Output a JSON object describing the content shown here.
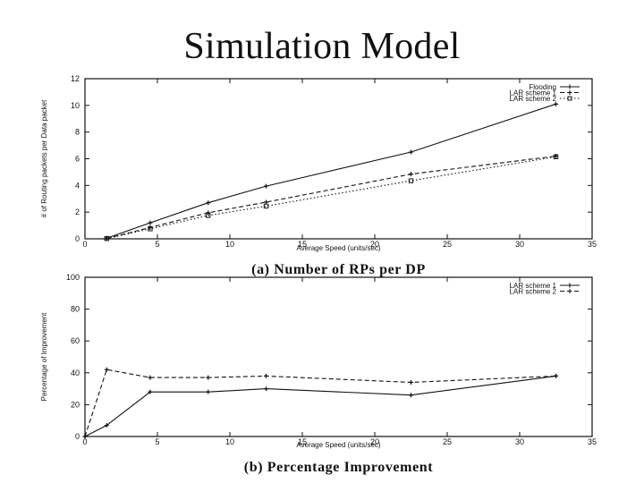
{
  "slide": {
    "title": "Simulation Model"
  },
  "chart_data": [
    {
      "type": "line",
      "caption": "(a) Number of RPs per DP",
      "xlabel": "Average Speed (units/sec)",
      "ylabel": "# of Routing packets per Data packet",
      "xlim": [
        0,
        35
      ],
      "ylim": [
        0,
        12
      ],
      "xticks": [
        0,
        5,
        10,
        15,
        20,
        25,
        30,
        35
      ],
      "yticks": [
        0,
        2,
        4,
        6,
        8,
        10,
        12
      ],
      "legend_position": "top-right",
      "series": [
        {
          "name": "Flooding",
          "style": "solid",
          "marker": "plus",
          "x": [
            1.5,
            4.5,
            8.5,
            12.5,
            22.5,
            32.5
          ],
          "y": [
            0.05,
            1.2,
            2.7,
            3.95,
            6.5,
            10.1
          ]
        },
        {
          "name": "LAR scheme 1",
          "style": "dash",
          "marker": "plus",
          "x": [
            1.5,
            4.5,
            8.5,
            12.5,
            22.5,
            32.5
          ],
          "y": [
            0.03,
            0.85,
            1.95,
            2.75,
            4.85,
            6.2
          ]
        },
        {
          "name": "LAR scheme 2",
          "style": "dot",
          "marker": "square",
          "x": [
            1.5,
            4.5,
            8.5,
            12.5,
            22.5,
            32.5
          ],
          "y": [
            0.02,
            0.75,
            1.75,
            2.45,
            4.35,
            6.15
          ]
        }
      ]
    },
    {
      "type": "line",
      "caption": "(b) Percentage Improvement",
      "xlabel": "Average Speed (units/sec)",
      "ylabel": "Percentage of Improvement",
      "xlim": [
        0,
        35
      ],
      "ylim": [
        0,
        100
      ],
      "xticks": [
        0,
        5,
        10,
        15,
        20,
        25,
        30,
        35
      ],
      "yticks": [
        0,
        20,
        40,
        60,
        80,
        100
      ],
      "legend_position": "top-right",
      "series": [
        {
          "name": "LAR scheme 1",
          "style": "solid",
          "marker": "plus",
          "x": [
            0,
            1.5,
            4.5,
            8.5,
            12.5,
            22.5,
            32.5
          ],
          "y": [
            0,
            7,
            28,
            28,
            30,
            26,
            38
          ]
        },
        {
          "name": "LAR scheme 2",
          "style": "dash",
          "marker": "plus",
          "x": [
            0,
            1.5,
            4.5,
            8.5,
            12.5,
            22.5,
            32.5
          ],
          "y": [
            0,
            42,
            37,
            37,
            38,
            34,
            38
          ]
        }
      ]
    }
  ]
}
